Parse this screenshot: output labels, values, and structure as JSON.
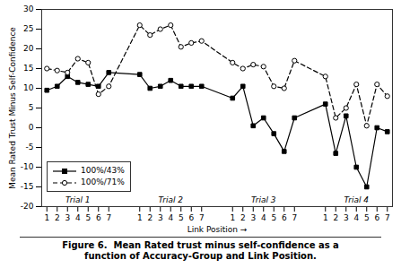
{
  "chart_data": {
    "type": "line",
    "xlabel": "Link Position",
    "ylabel": "Mean Rated Trust Minus Self-Confidence",
    "caption": "Figure 6.  Mean Rated trust minus self-confidence as a\nfunction of Accuracy-Group and Link Position.",
    "categories": [
      "1",
      "2",
      "3",
      "4",
      "5",
      "6",
      "7",
      "1",
      "2",
      "3",
      "4",
      "5",
      "6",
      "7",
      "1",
      "2",
      "3",
      "4",
      "5",
      "6",
      "7",
      "1",
      "2",
      "3",
      "4",
      "5",
      "6",
      "7"
    ],
    "annotations": [
      "Trial 1",
      "Trial 2",
      "Trial 3",
      "Trial 4"
    ],
    "series": [
      {
        "name": "100%/43%",
        "color": "black",
        "marker": "square",
        "line_style": "solid",
        "values": [
          9.5,
          10.5,
          13,
          11.5,
          11,
          10.5,
          14,
          13.5,
          10,
          10.5,
          12,
          10.5,
          10.5,
          10.5,
          7.5,
          10.5,
          0.5,
          2.5,
          -1.5,
          -6,
          2.5,
          6,
          -6.5,
          3,
          -10,
          -15,
          0,
          -1
        ]
      },
      {
        "name": "100%/71%",
        "color": "black",
        "marker": "open_circle",
        "line_style": "dashed",
        "values": [
          15,
          14.5,
          14,
          17.5,
          16.5,
          8.5,
          10.5,
          26,
          23.5,
          25,
          26,
          20.5,
          21.5,
          22,
          16.5,
          15,
          16,
          15.5,
          10.5,
          10,
          17,
          13,
          2.5,
          5,
          11,
          0.5,
          11,
          8
        ]
      }
    ],
    "ylim": [
      -20,
      30
    ],
    "yticks": [
      -20,
      -15,
      -10,
      -5,
      0,
      5,
      10,
      15,
      20,
      25,
      30
    ],
    "legend": "lower left"
  }
}
